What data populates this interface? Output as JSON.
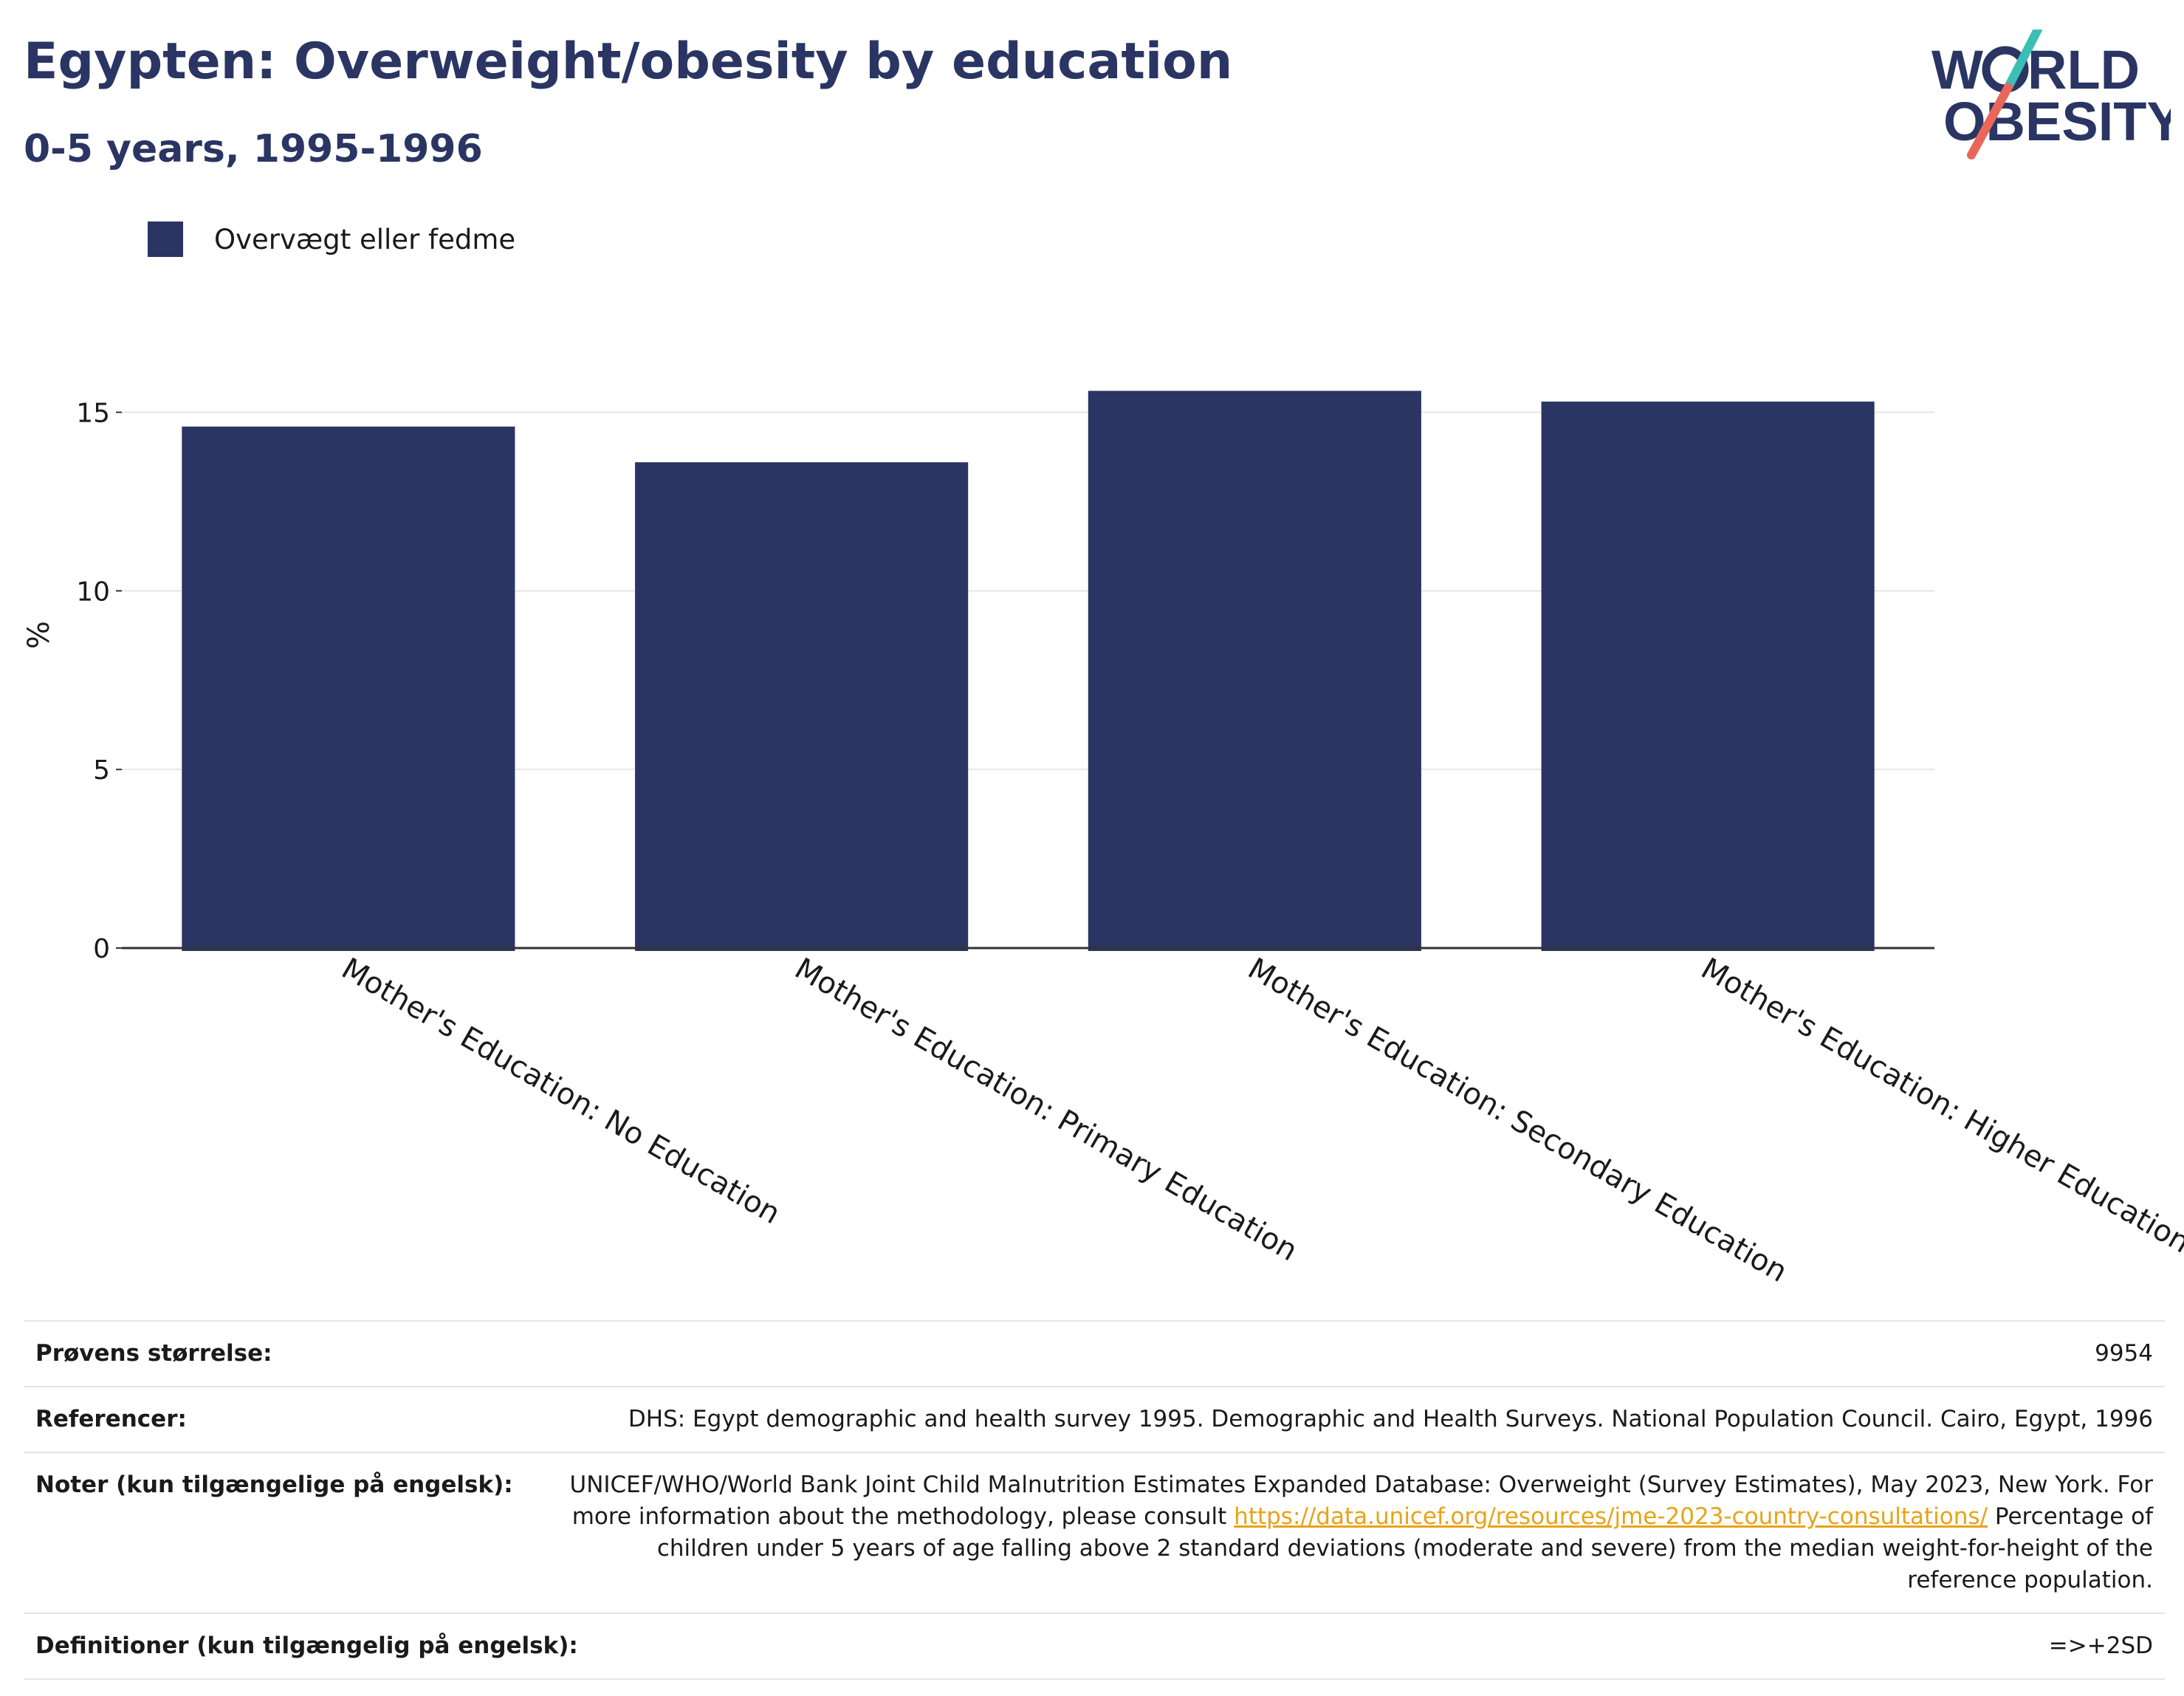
{
  "header": {
    "title": "Egypten: Overweight/obesity by education",
    "subtitle": "0-5 years, 1995-1996"
  },
  "logo": {
    "line1": "W",
    "line1_rest": "RLD",
    "line2": "OBESITY",
    "colors": {
      "text": "#2a3563",
      "slash_top": "#3bbfb5",
      "slash_bottom": "#e8675a"
    }
  },
  "colors": {
    "bar": "#2a3563",
    "grid": "#e6e6e6",
    "axis": "#333333"
  },
  "chart_data": {
    "type": "bar",
    "categories": [
      "Mother's Education: No Education",
      "Mother's Education: Primary Education",
      "Mother's Education: Secondary Education",
      "Mother's Education: Higher Education"
    ],
    "series": [
      {
        "name": "Overvægt eller fedme",
        "values": [
          14.6,
          13.6,
          15.6,
          15.3
        ]
      }
    ],
    "ylabel": "%",
    "ylim": [
      0,
      16
    ],
    "yticks": [
      0,
      5,
      10,
      15
    ],
    "grid": true,
    "legend_position": "top-left"
  },
  "info": {
    "sample_label": "Prøvens størrelse:",
    "sample_value": "9954",
    "references_label": "Referencer:",
    "references_value": "DHS: Egypt demographic and health survey 1995. Demographic and Health Surveys. National Population Council. Cairo, Egypt, 1996",
    "notes_label": "Noter (kun tilgængelige på engelsk):",
    "notes_text_1": "UNICEF/WHO/World Bank Joint Child Malnutrition Estimates Expanded Database: Overweight (Survey Estimates), May 2023, New York. For more information about the methodology, please consult",
    "notes_link": "https://data.unicef.org/resources/jme-2023-country-consultations/",
    "notes_text_2": "Percentage of children under 5 years of age falling above 2 standard deviations (moderate and severe) from the median weight-for-height of the reference population.",
    "definitions_label": "Definitioner (kun tilgængelig på engelsk):",
    "definitions_value": "=>+2SD"
  }
}
